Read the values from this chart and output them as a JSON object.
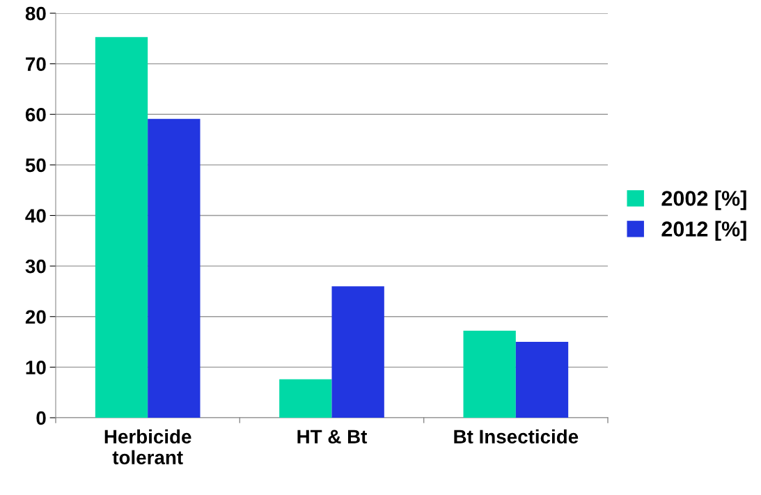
{
  "chart_data": {
    "type": "bar",
    "categories": [
      "Herbicide\ntolerant",
      "HT & Bt",
      "Bt Insecticide"
    ],
    "series": [
      {
        "name": "2002 [%]",
        "color": "#00d9a6",
        "values": [
          75.3,
          7.6,
          17.2
        ]
      },
      {
        "name": "2012 [%]",
        "color": "#2236e0",
        "values": [
          59.1,
          26.0,
          15.0
        ]
      }
    ],
    "ylim": [
      0,
      80
    ],
    "yticks": [
      0,
      10,
      20,
      30,
      40,
      50,
      60,
      70,
      80
    ],
    "grid": "y",
    "legend": "right"
  }
}
